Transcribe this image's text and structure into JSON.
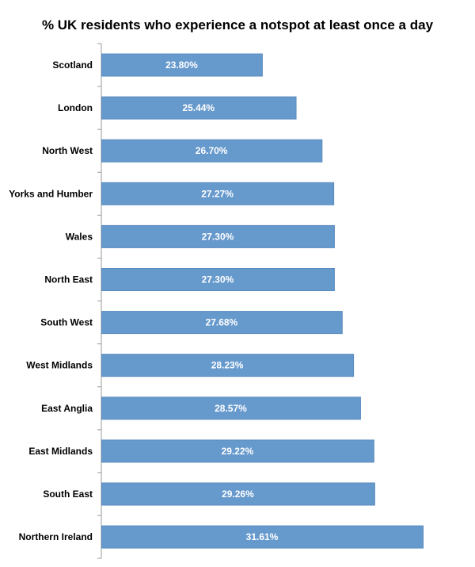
{
  "chart_data": {
    "type": "bar",
    "orientation": "horizontal",
    "title": "% UK residents who experience a notspot at least once a day",
    "xlabel": "",
    "ylabel": "",
    "categories": [
      "Scotland",
      "London",
      "North West",
      "Yorks and Humber",
      "Wales",
      "North East",
      "South West",
      "West Midlands",
      "East Anglia",
      "East Midlands",
      "South East",
      "Northern Ireland"
    ],
    "values": [
      23.8,
      25.44,
      26.7,
      27.27,
      27.3,
      27.3,
      27.68,
      28.23,
      28.57,
      29.22,
      29.26,
      31.61
    ],
    "data_labels": [
      "23.80%",
      "25.44%",
      "26.70%",
      "27.27%",
      "27.30%",
      "27.30%",
      "27.68%",
      "28.23%",
      "28.57%",
      "29.22%",
      "29.26%",
      "31.61%"
    ],
    "xlim": [
      16,
      32
    ],
    "grid": false,
    "legend": "none",
    "bar_color": "#6699cc",
    "label_color": "#ffffff",
    "axis_color": "#9a9a9a"
  }
}
